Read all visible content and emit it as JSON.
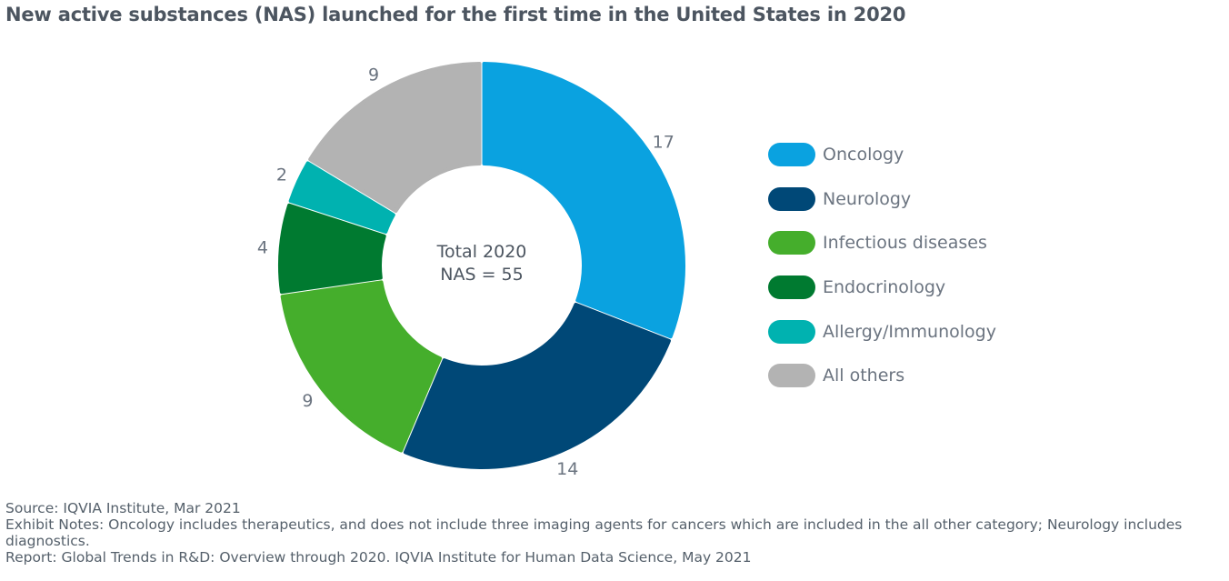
{
  "title": "New active substances (NAS) launched for the first time in the United States in 2020",
  "center_label": {
    "line1": "Total 2020",
    "line2": "NAS = 55"
  },
  "chart_data": {
    "type": "pie",
    "donut": true,
    "title": "New active substances (NAS) launched for the first time in the United States in 2020",
    "categories": [
      "Oncology",
      "Neurology",
      "Infectious diseases",
      "Endocrinology",
      "Allergy/Immunology",
      "All others"
    ],
    "values": [
      17,
      14,
      9,
      4,
      2,
      9
    ],
    "colors": [
      "#0aa2e0",
      "#004877",
      "#45ae2c",
      "#007a30",
      "#00b2b0",
      "#b3b3b3"
    ],
    "legend_position": "right",
    "total": 55
  },
  "notes": {
    "source": "Source: IQVIA Institute, Mar 2021",
    "exhibit_notes": "Exhibit Notes: Oncology includes therapeutics, and does not include three imaging agents for cancers which are included in the all other category; Neurology includes diagnostics.",
    "report": "Report: Global Trends in R&D: Overview through 2020. IQVIA Institute for Human Data Science, May 2021"
  }
}
